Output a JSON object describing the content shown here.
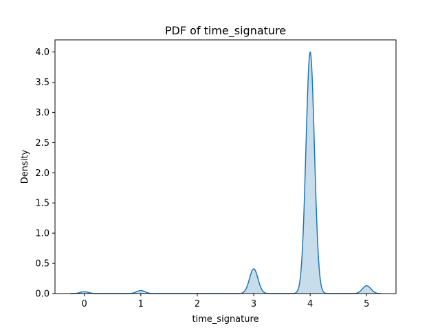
{
  "chart_data": {
    "type": "area",
    "title": "PDF of time_signature",
    "xlabel": "time_signature",
    "ylabel": "Density",
    "xlim": [
      -0.52,
      5.52
    ],
    "ylim": [
      0,
      4.2
    ],
    "x_ticks": [
      0,
      1,
      2,
      3,
      4,
      5
    ],
    "x_tick_labels": [
      "0",
      "1",
      "2",
      "3",
      "4",
      "5"
    ],
    "y_ticks": [
      0,
      0.5,
      1,
      1.5,
      2,
      2.5,
      3,
      3.5,
      4
    ],
    "y_tick_labels": [
      "0.0",
      "0.5",
      "1.0",
      "1.5",
      "2.0",
      "2.5",
      "3.0",
      "3.5",
      "4.0"
    ],
    "grid": false,
    "series": [
      {
        "color": "#1f77b4",
        "fill_color": "#1f77b4",
        "fill_alpha": 0.25,
        "peaks": [
          {
            "x": 0,
            "density": 0.03
          },
          {
            "x": 1,
            "density": 0.05
          },
          {
            "x": 3,
            "density": 0.41
          },
          {
            "x": 4,
            "density": 4.0
          },
          {
            "x": 5,
            "density": 0.13
          }
        ],
        "x_range": [
          -0.25,
          5.25
        ]
      }
    ]
  }
}
